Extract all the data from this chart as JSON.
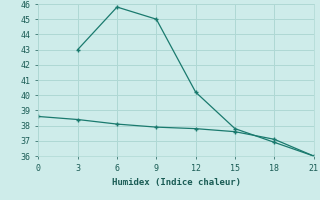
{
  "xlabel": "Humidex (Indice chaleur)",
  "line1_x": [
    0,
    3,
    6,
    9,
    12,
    15,
    18,
    21
  ],
  "line1_y": [
    38.6,
    38.4,
    38.1,
    37.9,
    37.8,
    37.6,
    37.1,
    36.0
  ],
  "line2_x": [
    3,
    6,
    9,
    12,
    15,
    18,
    21
  ],
  "line2_y": [
    43.0,
    45.8,
    45.0,
    40.2,
    37.8,
    36.9,
    36.0
  ],
  "xlim": [
    0,
    21
  ],
  "ylim": [
    36,
    46
  ],
  "xticks": [
    0,
    3,
    6,
    9,
    12,
    15,
    18,
    21
  ],
  "yticks": [
    36,
    37,
    38,
    39,
    40,
    41,
    42,
    43,
    44,
    45,
    46
  ],
  "line_color": "#1a7a6e",
  "bg_color": "#ceecea",
  "grid_color": "#afd8d4",
  "font_color": "#1a5c55",
  "marker": "+"
}
